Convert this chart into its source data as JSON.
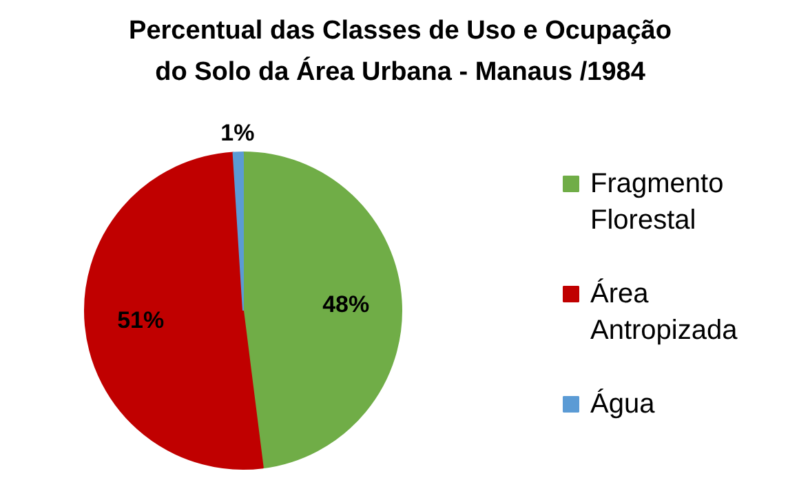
{
  "chart_data": {
    "type": "pie",
    "title": "Percentual das Classes de Uso e Ocupação do Solo da Área Urbana - Manaus /1984",
    "categories": [
      "Fragmento Florestal",
      "Área Antropizada",
      "Água"
    ],
    "values": [
      48,
      51,
      1
    ],
    "colors": [
      "#70ad47",
      "#c00000",
      "#5b9bd5"
    ],
    "value_labels": [
      "48%",
      "51%",
      "1%"
    ],
    "legend": "right"
  }
}
